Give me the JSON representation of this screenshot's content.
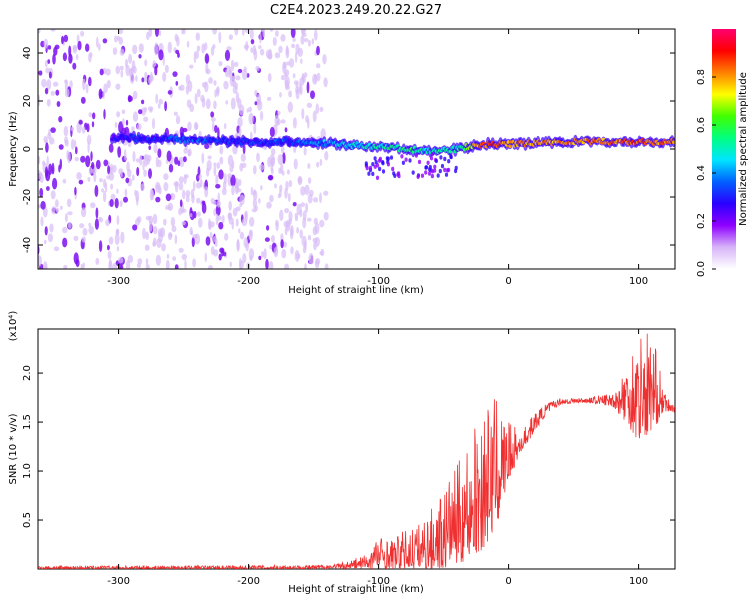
{
  "title": "C2E4.2023.249.20.22.G27",
  "chart_data": [
    {
      "type": "heatmap",
      "xlabel": "Height of straight line (km)",
      "ylabel": "Frequency (Hz)",
      "xlim": [
        -362,
        128
      ],
      "ylim": [
        -50,
        50
      ],
      "x_ticks": [
        -300,
        -200,
        -100,
        0,
        100
      ],
      "x_tick_labels": [
        "-300",
        "-200",
        "-100",
        "0",
        "100"
      ],
      "y_ticks": [
        -40,
        -20,
        0,
        20,
        40
      ],
      "y_tick_labels": [
        "-40",
        "-20",
        "0",
        "20",
        "40"
      ],
      "colorbar": {
        "label": "Normalized spectral amplitude",
        "range": [
          0,
          1
        ],
        "ticks": [
          0.0,
          0.2,
          0.4,
          0.6,
          0.8
        ],
        "tick_labels": [
          "0.0",
          "0.2",
          "0.4",
          "0.6",
          "0.8"
        ],
        "colormap": [
          "#ffffff",
          "#d7b4f8",
          "#8f00ff",
          "#2a00ff",
          "#0060ff",
          "#00e5ff",
          "#00ff80",
          "#40ff00",
          "#ffff00",
          "#ff8000",
          "#ff0000",
          "#ff0070"
        ]
      },
      "ridge": {
        "x": [
          -305,
          -270,
          -250,
          -200,
          -160,
          -130,
          -100,
          -80,
          -60,
          -40,
          -20,
          0,
          50,
          100,
          128
        ],
        "frequency": [
          5,
          4,
          4,
          3,
          3,
          2,
          1,
          0,
          -1,
          0,
          2,
          2,
          3,
          3,
          3
        ],
        "amplitude": [
          0.25,
          0.3,
          0.35,
          0.3,
          0.35,
          0.45,
          0.5,
          0.55,
          0.5,
          0.5,
          0.85,
          0.8,
          0.8,
          0.85,
          0.8
        ]
      },
      "noise_extent_x": [
        -362,
        -140
      ]
    },
    {
      "type": "line",
      "xlabel": "Height of straight line (km)",
      "ylabel": "SNR (10 * v/v)",
      "y_multiplier": "(x10⁴)",
      "xlim": [
        -362,
        128
      ],
      "ylim": [
        0,
        2.45
      ],
      "x_ticks": [
        -300,
        -200,
        -100,
        0,
        100
      ],
      "x_tick_labels": [
        "-300",
        "-200",
        "-100",
        "0",
        "100"
      ],
      "y_ticks": [
        0.5,
        1.0,
        1.5,
        2.0
      ],
      "y_tick_labels": [
        "0.5",
        "1.0",
        "1.5",
        "2.0"
      ],
      "color": "#f03030",
      "envelope": {
        "x": [
          -362,
          -150,
          -130,
          -110,
          -100,
          -90,
          -80,
          -70,
          -60,
          -50,
          -40,
          -30,
          -20,
          -10,
          0,
          10,
          20,
          30,
          40,
          60,
          80,
          90,
          100,
          110,
          120,
          128
        ],
        "low": [
          0,
          0,
          0,
          0,
          0,
          0,
          0,
          0,
          0,
          0,
          0.05,
          0.1,
          0.2,
          0.4,
          0.9,
          1.2,
          1.4,
          1.6,
          1.68,
          1.7,
          1.66,
          1.5,
          1.3,
          1.4,
          1.6,
          1.6
        ],
        "high": [
          0.03,
          0.04,
          0.06,
          0.15,
          0.35,
          0.3,
          0.4,
          0.45,
          0.6,
          0.85,
          1.05,
          1.35,
          1.6,
          1.75,
          1.5,
          1.4,
          1.6,
          1.7,
          1.75,
          1.75,
          1.8,
          2.1,
          2.45,
          2.45,
          1.8,
          1.65
        ]
      }
    }
  ]
}
